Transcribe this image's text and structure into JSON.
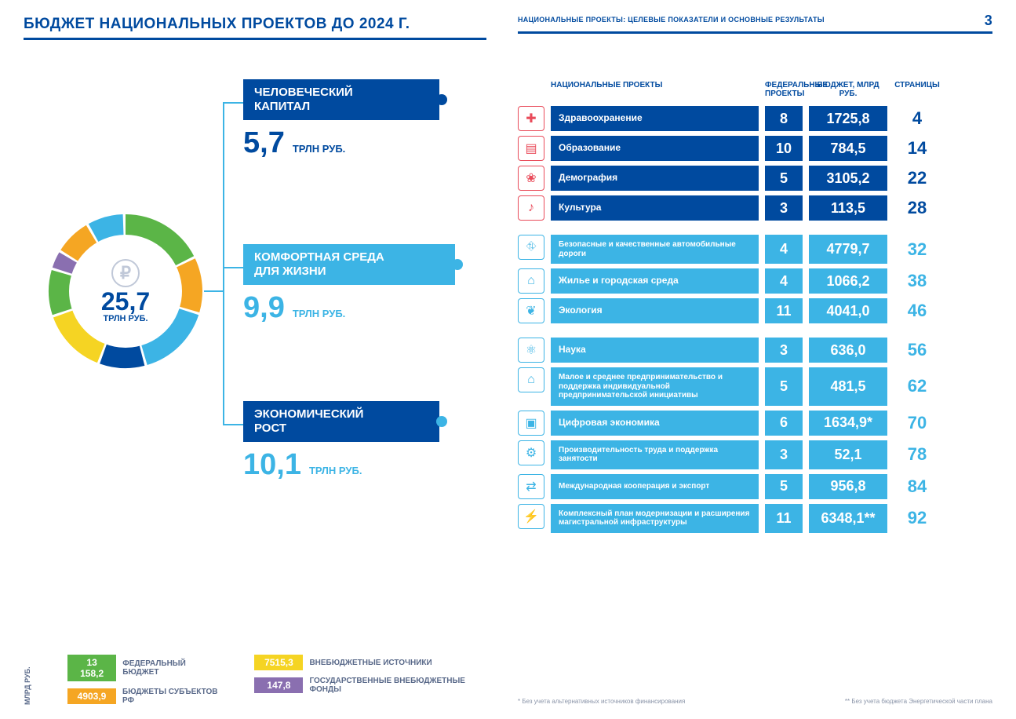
{
  "page_number": "3",
  "left": {
    "title": "БЮДЖЕТ НАЦИОНАЛЬНЫХ ПРОЕКТОВ ДО 2024 Г.",
    "donut": {
      "total_value": "25,7",
      "total_unit": "ТРЛН РУБ.",
      "ruble_symbol": "₽",
      "segments": [
        {
          "color": "#5bb547",
          "pct": 18
        },
        {
          "color": "#f5a623",
          "pct": 12
        },
        {
          "color": "#3cb4e5",
          "pct": 16
        },
        {
          "color": "#004a9f",
          "pct": 10
        },
        {
          "color": "#f5d423",
          "pct": 14
        },
        {
          "color": "#5bb547",
          "pct": 10
        },
        {
          "color": "#8a6fb0",
          "pct": 4
        },
        {
          "color": "#f5a623",
          "pct": 8
        },
        {
          "color": "#3cb4e5",
          "pct": 8
        }
      ]
    },
    "categories": [
      {
        "title": "ЧЕЛОВЕЧЕСКИЙ\nКАПИТАЛ",
        "value": "5,7",
        "unit": "ТРЛН РУБ.",
        "color": "#004a9f"
      },
      {
        "title": "КОМФОРТНАЯ СРЕДА\nДЛЯ ЖИЗНИ",
        "value": "9,9",
        "unit": "ТРЛН РУБ.",
        "color": "#3cb4e5"
      },
      {
        "title": "ЭКОНОМИЧЕСКИЙ\nРОСТ",
        "value": "10,1",
        "unit": "ТРЛН РУБ.",
        "color": "#3cb4e5"
      }
    ],
    "legend_unit": "МЛРД РУБ.",
    "legend": [
      {
        "value": "13 158,2",
        "label": "ФЕДЕРАЛЬНЫЙ БЮДЖЕТ",
        "color": "#5bb547"
      },
      {
        "value": "4903,9",
        "label": "БЮДЖЕТЫ СУБЪЕКТОВ РФ",
        "color": "#f5a623"
      },
      {
        "value": "7515,3",
        "label": "ВНЕБЮДЖЕТНЫЕ ИСТОЧНИКИ",
        "color": "#f5d423"
      },
      {
        "value": "147,8",
        "label": "ГОСУДАРСТВЕННЫЕ ВНЕБЮДЖЕТНЫЕ ФОНДЫ",
        "color": "#8a6fb0"
      }
    ]
  },
  "right": {
    "title": "НАЦИОНАЛЬНЫЕ ПРОЕКТЫ: ЦЕЛЕВЫЕ ПОКАЗАТЕЛИ И ОСНОВНЫЕ РЕЗУЛЬТАТЫ",
    "headers": {
      "name": "НАЦИОНАЛЬНЫЕ ПРОЕКТЫ",
      "fed": "ФЕДЕРАЛЬНЫЕ ПРОЕКТЫ",
      "budget": "БЮДЖЕТ, МЛРД РУБ.",
      "page": "СТРАНИЦЫ"
    },
    "groups": [
      {
        "class": "g1",
        "rows": [
          {
            "icon": "✚",
            "name": "Здравоохранение",
            "fed": "8",
            "budget": "1725,8",
            "page": "4"
          },
          {
            "icon": "▤",
            "name": "Образование",
            "fed": "10",
            "budget": "784,5",
            "page": "14"
          },
          {
            "icon": "❀",
            "name": "Демография",
            "fed": "5",
            "budget": "3105,2",
            "page": "22"
          },
          {
            "icon": "♪",
            "name": "Культура",
            "fed": "3",
            "budget": "113,5",
            "page": "28"
          }
        ]
      },
      {
        "class": "g2",
        "rows": [
          {
            "icon": "⛗",
            "name": "Безопасные и качественные автомобильные дороги",
            "fed": "4",
            "budget": "4779,7",
            "page": "32",
            "small": true
          },
          {
            "icon": "⌂",
            "name": "Жилье и городская среда",
            "fed": "4",
            "budget": "1066,2",
            "page": "38"
          },
          {
            "icon": "❦",
            "name": "Экология",
            "fed": "11",
            "budget": "4041,0",
            "page": "46"
          }
        ]
      },
      {
        "class": "g3",
        "rows": [
          {
            "icon": "⚛",
            "name": "Наука",
            "fed": "3",
            "budget": "636,0",
            "page": "56"
          },
          {
            "icon": "⌂",
            "name": "Малое и среднее предпринимательство и поддержка индивидуальной предпринимательской инициативы",
            "fed": "5",
            "budget": "481,5",
            "page": "62",
            "small": true
          },
          {
            "icon": "▣",
            "name": "Цифровая экономика",
            "fed": "6",
            "budget": "1634,9*",
            "page": "70"
          },
          {
            "icon": "⚙",
            "name": "Производительность труда и поддержка занятости",
            "fed": "3",
            "budget": "52,1",
            "page": "78",
            "small": true
          },
          {
            "icon": "⇄",
            "name": "Международная кооперация и экспорт",
            "fed": "5",
            "budget": "956,8",
            "page": "84",
            "small": true
          },
          {
            "icon": "⚡",
            "name": "Комплексный план модернизации и расширения магистральной инфраструктуры",
            "fed": "11",
            "budget": "6348,1**",
            "page": "92",
            "small": true
          }
        ]
      }
    ],
    "footnote1": "* Без учета альтернативных источников финансирования",
    "footnote2": "** Без учета бюджета Энергетической части плана"
  }
}
